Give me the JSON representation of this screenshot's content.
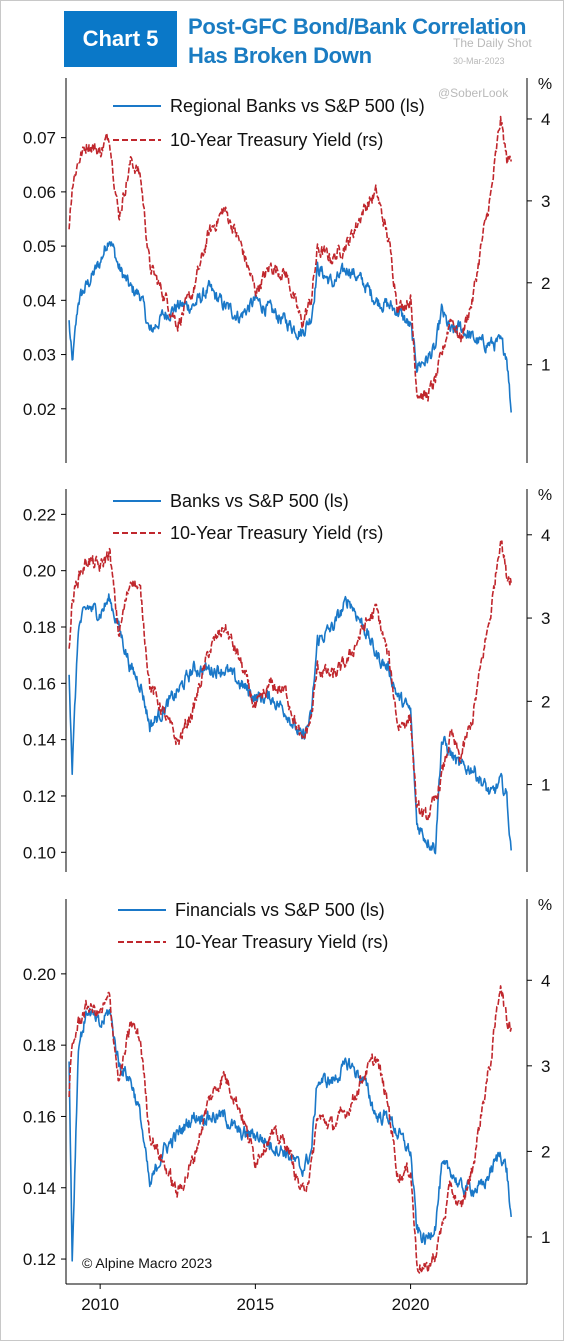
{
  "header": {
    "badge": "Chart 5",
    "title_line1": "Post-GFC Bond/Bank Correlation",
    "title_line2": "Has Broken Down",
    "source": "The Daily Shot",
    "date": "30-Mar-2023",
    "handle": "@SoberLook"
  },
  "colors": {
    "accent": "#0a78c8",
    "banks_series": "#1a78c8",
    "treasury_series": "#c0272d"
  },
  "footer": {
    "copyright": "© Alpine Macro 2023"
  },
  "chart_data": [
    {
      "type": "line",
      "legend": [
        "Regional Banks vs S&P 500 (ls)",
        "10-Year Treasury Yield (rs)"
      ],
      "right_unit": "%",
      "ylim_left": [
        0.01,
        0.081
      ],
      "ylim_right": [
        -0.2,
        4.5
      ],
      "yticks_left": [
        "0.02",
        "0.03",
        "0.04",
        "0.05",
        "0.06",
        "0.07"
      ],
      "yticks_right": [
        "1",
        "2",
        "3",
        "4"
      ],
      "x": [
        2009.0,
        2009.1,
        2009.3,
        2009.6,
        2010.0,
        2010.3,
        2010.6,
        2011.0,
        2011.3,
        2011.6,
        2012.0,
        2012.5,
        2013.0,
        2013.5,
        2014.0,
        2014.5,
        2015.0,
        2015.5,
        2016.0,
        2016.5,
        2016.8,
        2017.0,
        2017.5,
        2018.0,
        2018.5,
        2018.9,
        2019.3,
        2019.6,
        2020.0,
        2020.2,
        2020.5,
        2020.8,
        2021.0,
        2021.3,
        2021.6,
        2022.0,
        2022.3,
        2022.6,
        2022.9,
        2023.1,
        2023.25
      ],
      "series": [
        {
          "name": "Regional Banks vs S&P 500 (ls)",
          "values": [
            0.036,
            0.028,
            0.04,
            0.043,
            0.047,
            0.052,
            0.046,
            0.042,
            0.041,
            0.034,
            0.037,
            0.039,
            0.039,
            0.042,
            0.039,
            0.037,
            0.04,
            0.038,
            0.036,
            0.034,
            0.037,
            0.046,
            0.043,
            0.046,
            0.043,
            0.04,
            0.039,
            0.038,
            0.035,
            0.028,
            0.029,
            0.031,
            0.038,
            0.034,
            0.035,
            0.033,
            0.032,
            0.032,
            0.032,
            0.03,
            0.019
          ]
        },
        {
          "name": "10-Year Treasury Yield (rs)",
          "values": [
            2.7,
            3.2,
            3.5,
            3.7,
            3.6,
            3.8,
            2.8,
            3.5,
            3.3,
            2.2,
            1.9,
            1.5,
            1.9,
            2.6,
            2.9,
            2.5,
            1.9,
            2.2,
            2.1,
            1.5,
            1.8,
            2.4,
            2.3,
            2.5,
            2.9,
            3.1,
            2.5,
            1.7,
            1.8,
            0.7,
            0.6,
            0.8,
            1.1,
            1.6,
            1.3,
            1.8,
            2.5,
            3.1,
            4.0,
            3.5,
            3.5
          ]
        }
      ]
    },
    {
      "type": "line",
      "legend": [
        "Banks vs S&P 500 (ls)",
        "10-Year Treasury Yield (rs)"
      ],
      "right_unit": "%",
      "ylim_left": [
        0.093,
        0.229
      ],
      "ylim_right": [
        -0.05,
        4.55
      ],
      "yticks_left": [
        "0.10",
        "0.12",
        "0.14",
        "0.16",
        "0.18",
        "0.20",
        "0.22"
      ],
      "yticks_right": [
        "1",
        "2",
        "3",
        "4"
      ],
      "x": [
        2009.0,
        2009.1,
        2009.3,
        2009.6,
        2010.0,
        2010.3,
        2010.6,
        2011.0,
        2011.3,
        2011.6,
        2012.0,
        2012.5,
        2013.0,
        2013.5,
        2014.0,
        2014.5,
        2015.0,
        2015.5,
        2016.0,
        2016.5,
        2016.8,
        2017.0,
        2017.5,
        2018.0,
        2018.5,
        2018.9,
        2019.3,
        2019.6,
        2020.0,
        2020.2,
        2020.5,
        2020.8,
        2021.0,
        2021.3,
        2021.6,
        2022.0,
        2022.3,
        2022.6,
        2022.9,
        2023.1,
        2023.25
      ],
      "series": [
        {
          "name": "Banks vs S&P 500 (ls)",
          "values": [
            0.165,
            0.13,
            0.18,
            0.187,
            0.185,
            0.19,
            0.18,
            0.165,
            0.16,
            0.145,
            0.15,
            0.157,
            0.165,
            0.165,
            0.165,
            0.16,
            0.155,
            0.155,
            0.15,
            0.14,
            0.148,
            0.175,
            0.18,
            0.19,
            0.18,
            0.17,
            0.165,
            0.155,
            0.15,
            0.11,
            0.105,
            0.102,
            0.14,
            0.135,
            0.13,
            0.13,
            0.125,
            0.12,
            0.125,
            0.12,
            0.098
          ]
        },
        {
          "name": "10-Year Treasury Yield (rs)",
          "values": [
            2.7,
            3.2,
            3.5,
            3.7,
            3.6,
            3.8,
            2.8,
            3.5,
            3.3,
            2.2,
            1.9,
            1.5,
            1.9,
            2.6,
            2.9,
            2.5,
            1.9,
            2.2,
            2.1,
            1.5,
            1.8,
            2.4,
            2.3,
            2.5,
            2.9,
            3.1,
            2.5,
            1.7,
            1.8,
            0.7,
            0.6,
            0.8,
            1.1,
            1.6,
            1.3,
            1.8,
            2.5,
            3.1,
            4.0,
            3.5,
            3.5
          ]
        }
      ]
    },
    {
      "type": "line",
      "legend": [
        "Financials vs S&P 500 (ls)",
        "10-Year Treasury Yield (rs)"
      ],
      "right_unit": "%",
      "ylim_left": [
        0.113,
        0.221
      ],
      "ylim_right": [
        0.45,
        4.95
      ],
      "yticks_left": [
        "0.12",
        "0.14",
        "0.16",
        "0.18",
        "0.20"
      ],
      "yticks_right": [
        "1",
        "2",
        "3",
        "4"
      ],
      "xticks": [
        "2010",
        "2015",
        "2020"
      ],
      "x": [
        2009.0,
        2009.1,
        2009.3,
        2009.6,
        2010.0,
        2010.3,
        2010.6,
        2011.0,
        2011.3,
        2011.6,
        2012.0,
        2012.5,
        2013.0,
        2013.5,
        2014.0,
        2014.5,
        2015.0,
        2015.5,
        2016.0,
        2016.5,
        2016.8,
        2017.0,
        2017.5,
        2018.0,
        2018.5,
        2018.9,
        2019.3,
        2019.6,
        2020.0,
        2020.2,
        2020.5,
        2020.8,
        2021.0,
        2021.3,
        2021.6,
        2022.0,
        2022.3,
        2022.6,
        2022.9,
        2023.1,
        2023.25
      ],
      "series": [
        {
          "name": "Financials vs S&P 500 (ls)",
          "values": [
            0.175,
            0.12,
            0.18,
            0.19,
            0.185,
            0.19,
            0.175,
            0.17,
            0.16,
            0.14,
            0.15,
            0.155,
            0.16,
            0.16,
            0.16,
            0.155,
            0.155,
            0.152,
            0.15,
            0.145,
            0.15,
            0.17,
            0.17,
            0.175,
            0.17,
            0.16,
            0.16,
            0.155,
            0.15,
            0.128,
            0.125,
            0.13,
            0.145,
            0.145,
            0.14,
            0.14,
            0.14,
            0.145,
            0.15,
            0.145,
            0.13
          ]
        },
        {
          "name": "10-Year Treasury Yield (rs)",
          "values": [
            2.7,
            3.2,
            3.5,
            3.7,
            3.6,
            3.8,
            2.8,
            3.5,
            3.3,
            2.2,
            1.9,
            1.5,
            1.9,
            2.6,
            2.9,
            2.5,
            1.9,
            2.2,
            2.1,
            1.5,
            1.8,
            2.4,
            2.3,
            2.5,
            2.9,
            3.1,
            2.5,
            1.7,
            1.8,
            0.7,
            0.6,
            0.8,
            1.1,
            1.6,
            1.3,
            1.8,
            2.5,
            3.1,
            4.0,
            3.5,
            3.5
          ]
        }
      ]
    }
  ]
}
